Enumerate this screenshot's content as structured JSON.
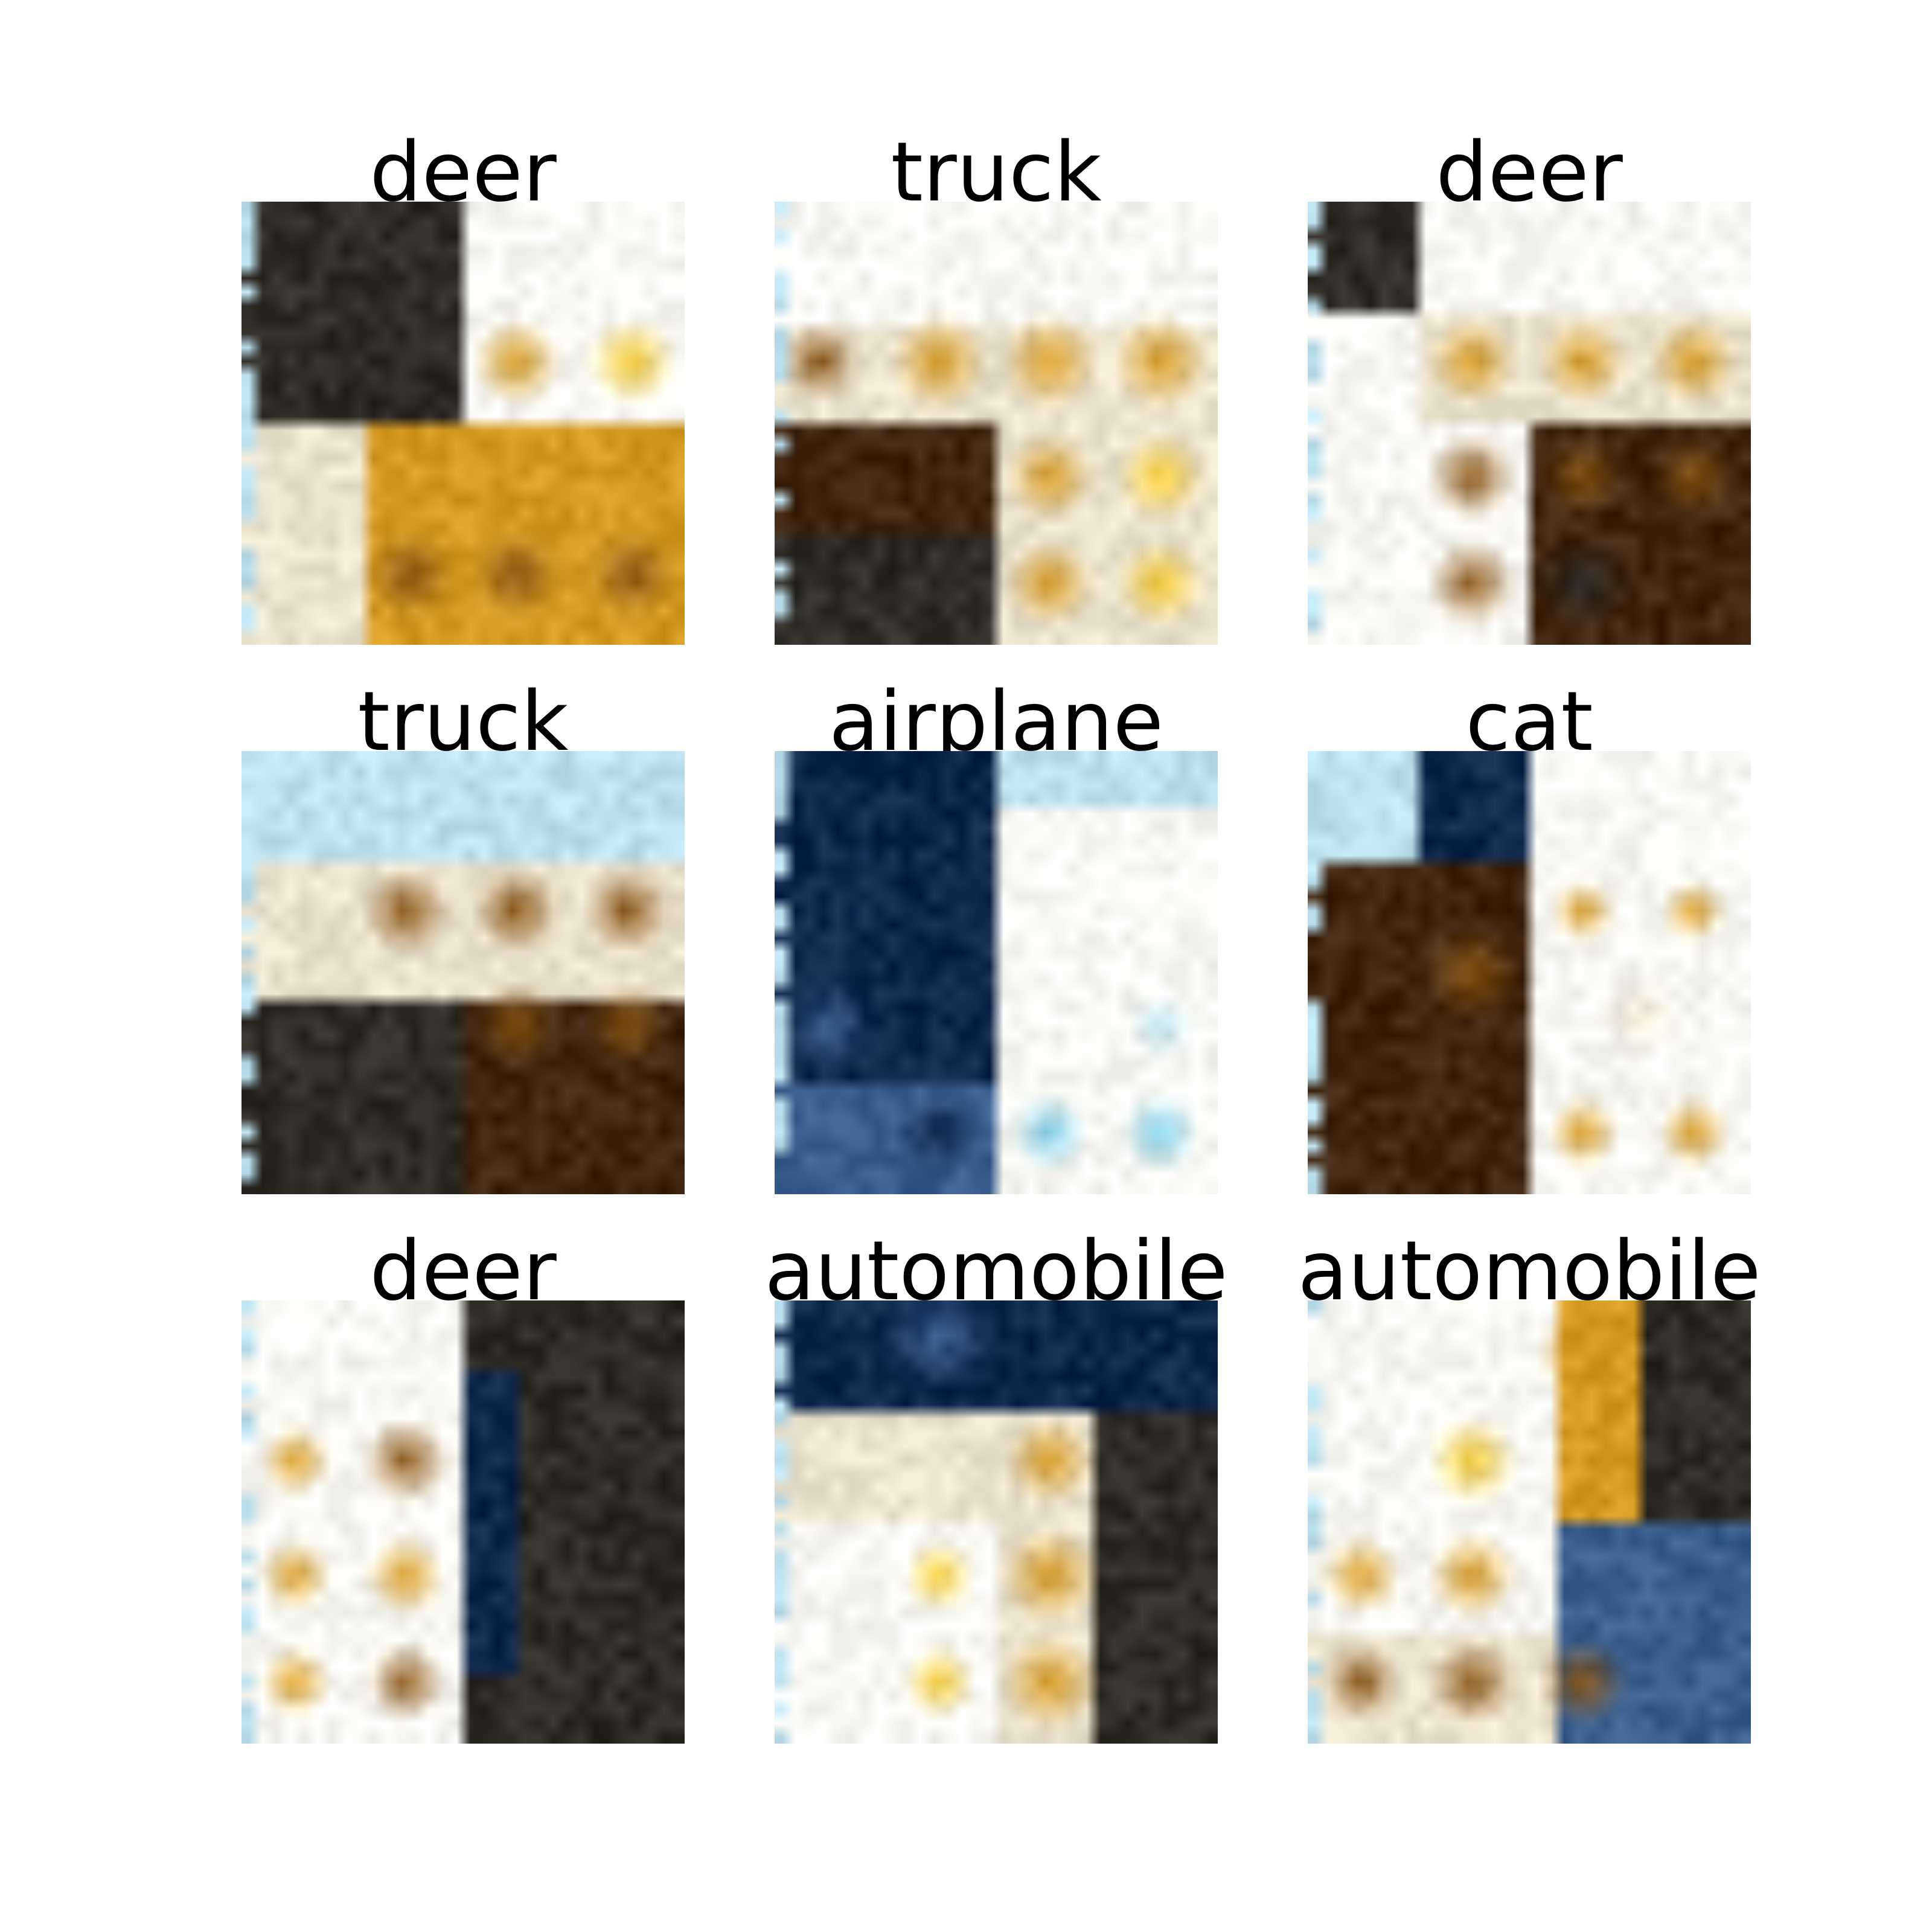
{
  "labels": [
    "deer",
    "truck",
    "deer",
    "truck",
    "airplane",
    "cat",
    "deer",
    "automobile",
    "automobile"
  ],
  "palette": {
    "white": "#fbfaf4",
    "cream": "#ece3cf",
    "sky": "#bde0ee",
    "cyan": "#7fcbe6",
    "gold": "#d69a23",
    "yellow": "#f1c731",
    "brown": "#8a5516",
    "dark_brown": "#3f2612",
    "charcoal": "#2f2c26",
    "navy": "#10274c",
    "blue": "#3a5f8f",
    "gray": "#7c7e80"
  },
  "tiles": [
    {
      "regions": [
        [
          "charcoal",
          0,
          0,
          0.5,
          0.5
        ],
        [
          "white",
          0.5,
          0,
          1,
          0.5
        ],
        [
          "cream",
          0,
          0.5,
          0.28,
          1
        ],
        [
          "gold",
          0.28,
          0.5,
          1,
          1
        ]
      ],
      "blobs": [
        [
          "yellow",
          0.88,
          0.36,
          0.1
        ],
        [
          "gold",
          0.62,
          0.36,
          0.1
        ],
        [
          "gold",
          0.4,
          0.62,
          0.1
        ],
        [
          "gold",
          0.62,
          0.62,
          0.1
        ],
        [
          "gold",
          0.88,
          0.62,
          0.1
        ],
        [
          "brown",
          0.38,
          0.84,
          0.1
        ],
        [
          "brown",
          0.62,
          0.84,
          0.1
        ],
        [
          "brown",
          0.88,
          0.84,
          0.1
        ]
      ]
    },
    {
      "regions": [
        [
          "white",
          0,
          0,
          1,
          0.28
        ],
        [
          "cream",
          0,
          0.28,
          1,
          0.5
        ],
        [
          "dark_brown",
          0,
          0.5,
          0.5,
          0.75
        ],
        [
          "charcoal",
          0,
          0.75,
          0.5,
          1
        ],
        [
          "cream",
          0.5,
          0.5,
          1,
          1
        ]
      ],
      "blobs": [
        [
          "brown",
          0.1,
          0.36,
          0.09
        ],
        [
          "gold",
          0.37,
          0.36,
          0.11
        ],
        [
          "gold",
          0.62,
          0.36,
          0.11
        ],
        [
          "gold",
          0.87,
          0.36,
          0.11
        ],
        [
          "gold",
          0.62,
          0.62,
          0.1
        ],
        [
          "yellow",
          0.87,
          0.62,
          0.1
        ],
        [
          "gold",
          0.62,
          0.86,
          0.1
        ],
        [
          "yellow",
          0.87,
          0.86,
          0.1
        ]
      ]
    },
    {
      "regions": [
        [
          "white",
          0,
          0,
          1,
          1
        ],
        [
          "charcoal",
          0,
          0,
          0.25,
          0.25
        ],
        [
          "cream",
          0.25,
          0.25,
          1,
          0.5
        ],
        [
          "dark_brown",
          0.5,
          0.5,
          1,
          1
        ]
      ],
      "blobs": [
        [
          "gold",
          0.37,
          0.36,
          0.1
        ],
        [
          "gold",
          0.62,
          0.36,
          0.1
        ],
        [
          "gold",
          0.87,
          0.36,
          0.1
        ],
        [
          "brown",
          0.37,
          0.62,
          0.1
        ],
        [
          "brown",
          0.62,
          0.62,
          0.1
        ],
        [
          "brown",
          0.87,
          0.62,
          0.1
        ],
        [
          "brown",
          0.37,
          0.86,
          0.1
        ],
        [
          "charcoal",
          0.62,
          0.86,
          0.1
        ]
      ]
    },
    {
      "regions": [
        [
          "sky",
          0,
          0,
          1,
          0.25
        ],
        [
          "cream",
          0,
          0.25,
          1,
          0.55
        ],
        [
          "charcoal",
          0,
          0.55,
          0.5,
          1
        ],
        [
          "dark_brown",
          0.5,
          0.55,
          1,
          1
        ]
      ],
      "blobs": [
        [
          "brown",
          0.37,
          0.36,
          0.1
        ],
        [
          "brown",
          0.62,
          0.36,
          0.1
        ],
        [
          "brown",
          0.87,
          0.36,
          0.1
        ],
        [
          "brown",
          0.62,
          0.62,
          0.1
        ],
        [
          "brown",
          0.87,
          0.62,
          0.1
        ],
        [
          "dark_brown",
          0.62,
          0.86,
          0.1
        ],
        [
          "dark_brown",
          0.87,
          0.86,
          0.1
        ]
      ]
    },
    {
      "regions": [
        [
          "navy",
          0,
          0,
          0.5,
          0.75
        ],
        [
          "blue",
          0,
          0.75,
          0.5,
          1
        ],
        [
          "white",
          0.5,
          0,
          1,
          1
        ],
        [
          "sky",
          0.5,
          0,
          1,
          0.12
        ]
      ],
      "blobs": [
        [
          "navy",
          0.37,
          0.86,
          0.1
        ],
        [
          "cyan",
          0.62,
          0.86,
          0.09
        ],
        [
          "cyan",
          0.87,
          0.86,
          0.09
        ],
        [
          "sky",
          0.87,
          0.62,
          0.08
        ],
        [
          "blue",
          0.12,
          0.62,
          0.1
        ]
      ]
    },
    {
      "regions": [
        [
          "sky",
          0,
          0,
          0.25,
          0.25
        ],
        [
          "navy",
          0.25,
          0,
          0.5,
          0.25
        ],
        [
          "dark_brown",
          0,
          0.25,
          0.5,
          1
        ],
        [
          "white",
          0.5,
          0,
          1,
          1
        ]
      ],
      "blobs": [
        [
          "brown",
          0.37,
          0.5,
          0.12
        ],
        [
          "gold",
          0.62,
          0.36,
          0.07
        ],
        [
          "gold",
          0.87,
          0.36,
          0.07
        ],
        [
          "gold",
          0.62,
          0.86,
          0.08
        ],
        [
          "gold",
          0.87,
          0.86,
          0.08
        ],
        [
          "cream",
          0.75,
          0.6,
          0.1
        ]
      ]
    },
    {
      "regions": [
        [
          "white",
          0,
          0,
          0.5,
          1
        ],
        [
          "charcoal",
          0.5,
          0,
          1,
          1
        ],
        [
          "navy",
          0.5,
          0.15,
          0.62,
          0.85
        ]
      ],
      "blobs": [
        [
          "brown",
          0.37,
          0.36,
          0.1
        ],
        [
          "gold",
          0.12,
          0.36,
          0.08
        ],
        [
          "gold",
          0.37,
          0.62,
          0.09
        ],
        [
          "gold",
          0.12,
          0.62,
          0.08
        ],
        [
          "brown",
          0.37,
          0.86,
          0.09
        ],
        [
          "gold",
          0.12,
          0.86,
          0.08
        ]
      ]
    },
    {
      "regions": [
        [
          "navy",
          0,
          0,
          1,
          0.25
        ],
        [
          "cream",
          0,
          0.25,
          0.5,
          0.5
        ],
        [
          "white",
          0,
          0.5,
          0.5,
          1
        ],
        [
          "cream",
          0.5,
          0.25,
          0.72,
          1
        ],
        [
          "charcoal",
          0.72,
          0.25,
          1,
          1
        ]
      ],
      "blobs": [
        [
          "yellow",
          0.37,
          0.62,
          0.08
        ],
        [
          "yellow",
          0.37,
          0.86,
          0.08
        ],
        [
          "gold",
          0.62,
          0.36,
          0.1
        ],
        [
          "gold",
          0.62,
          0.62,
          0.11
        ],
        [
          "gold",
          0.62,
          0.86,
          0.11
        ],
        [
          "blue",
          0.37,
          0.08,
          0.12
        ]
      ]
    },
    {
      "regions": [
        [
          "white",
          0,
          0,
          0.55,
          0.75
        ],
        [
          "gold",
          0.55,
          0,
          0.75,
          0.5
        ],
        [
          "charcoal",
          0.75,
          0,
          1,
          0.5
        ],
        [
          "blue",
          0.55,
          0.5,
          1,
          1
        ],
        [
          "cream",
          0,
          0.75,
          0.55,
          1
        ]
      ],
      "blobs": [
        [
          "yellow",
          0.37,
          0.36,
          0.1
        ],
        [
          "gold",
          0.62,
          0.12,
          0.1
        ],
        [
          "gold",
          0.12,
          0.62,
          0.09
        ],
        [
          "gold",
          0.37,
          0.62,
          0.1
        ],
        [
          "brown",
          0.12,
          0.86,
          0.09
        ],
        [
          "brown",
          0.37,
          0.86,
          0.1
        ],
        [
          "brown",
          0.62,
          0.86,
          0.1
        ]
      ]
    }
  ]
}
